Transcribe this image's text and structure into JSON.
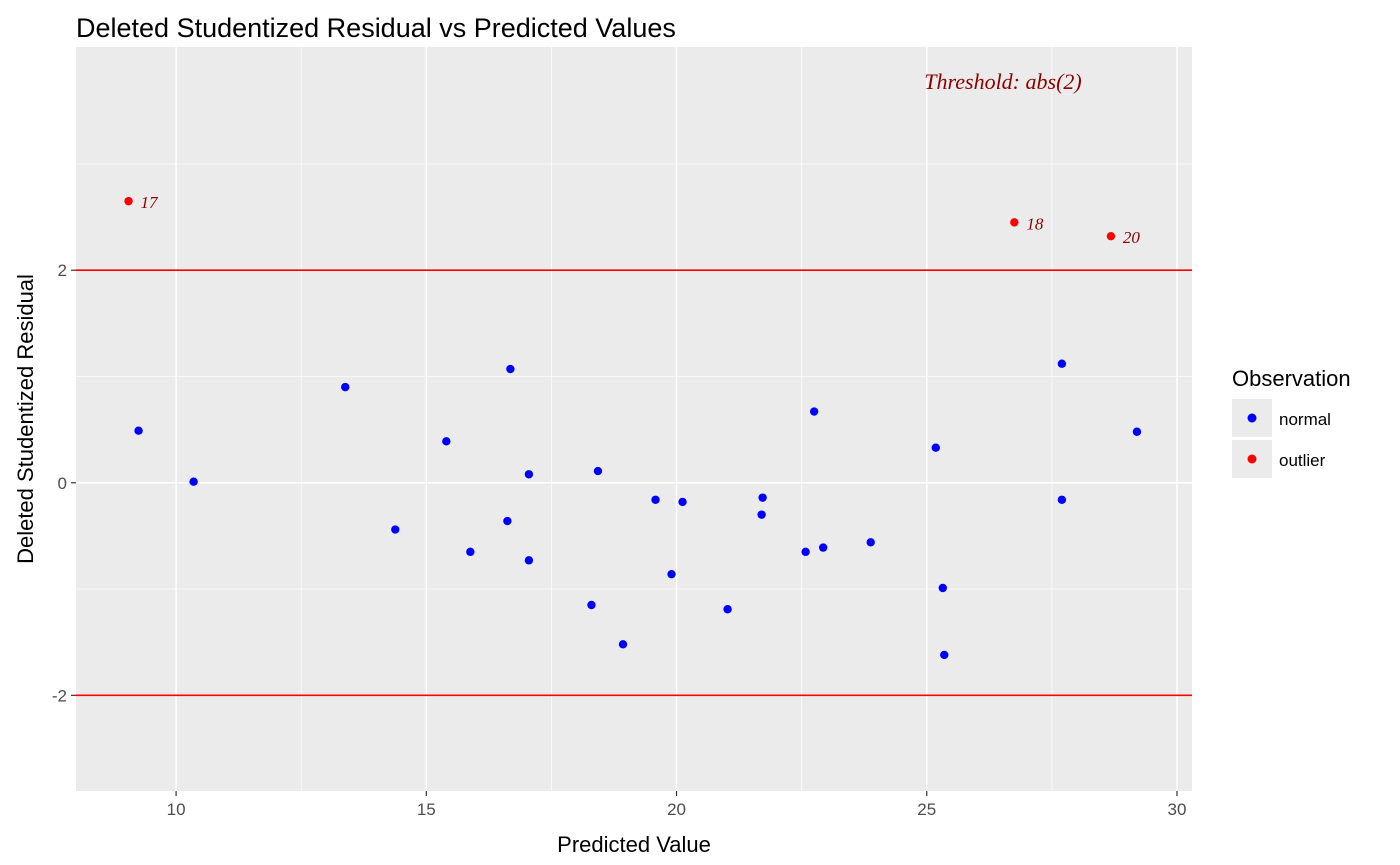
{
  "chart_data": {
    "type": "scatter",
    "title": "Deleted Studentized Residual vs Predicted Values",
    "xlabel": "Predicted Value",
    "ylabel": "Deleted Studentized Residual",
    "xlim": [
      8.0,
      30.3
    ],
    "ylim": [
      -2.9,
      4.1
    ],
    "x_ticks": [
      10,
      15,
      20,
      25,
      30
    ],
    "x_tick_labels": [
      "10",
      "15",
      "20",
      "25",
      "30"
    ],
    "y_ticks": [
      -2,
      0,
      2
    ],
    "y_tick_labels": [
      "-2",
      "0",
      "2"
    ],
    "grid": true,
    "threshold": 2,
    "threshold_lines": [
      2,
      -2
    ],
    "threshold_label": "Threshold: abs(2)",
    "legend": {
      "title": "Observation",
      "placement": "right",
      "entries": [
        {
          "label": "normal",
          "color": "#0000ff"
        },
        {
          "label": "outlier",
          "color": "#ff0000"
        }
      ]
    },
    "series": [
      {
        "name": "normal",
        "color": "#0000ff",
        "points": [
          {
            "x": 9.25,
            "y": 0.49
          },
          {
            "x": 10.35,
            "y": 0.01
          },
          {
            "x": 13.38,
            "y": 0.9
          },
          {
            "x": 14.38,
            "y": -0.44
          },
          {
            "x": 15.4,
            "y": 0.39
          },
          {
            "x": 15.88,
            "y": -0.65
          },
          {
            "x": 16.62,
            "y": -0.36
          },
          {
            "x": 16.68,
            "y": 1.07
          },
          {
            "x": 17.05,
            "y": 0.08
          },
          {
            "x": 17.05,
            "y": -0.73
          },
          {
            "x": 18.3,
            "y": -1.15
          },
          {
            "x": 18.43,
            "y": 0.11
          },
          {
            "x": 18.93,
            "y": -1.52
          },
          {
            "x": 19.58,
            "y": -0.16
          },
          {
            "x": 19.9,
            "y": -0.86
          },
          {
            "x": 20.12,
            "y": -0.18
          },
          {
            "x": 21.02,
            "y": -1.19
          },
          {
            "x": 21.7,
            "y": -0.3
          },
          {
            "x": 21.72,
            "y": -0.14
          },
          {
            "x": 22.58,
            "y": -0.65
          },
          {
            "x": 22.75,
            "y": 0.67
          },
          {
            "x": 22.93,
            "y": -0.61
          },
          {
            "x": 23.88,
            "y": -0.56
          },
          {
            "x": 25.18,
            "y": 0.33
          },
          {
            "x": 25.32,
            "y": -0.99
          },
          {
            "x": 25.35,
            "y": -1.62
          },
          {
            "x": 27.7,
            "y": 1.12
          },
          {
            "x": 27.7,
            "y": -0.16
          },
          {
            "x": 29.2,
            "y": 0.48
          }
        ]
      },
      {
        "name": "outlier",
        "color": "#ff0000",
        "points": [
          {
            "x": 9.05,
            "y": 2.65,
            "label": "17"
          },
          {
            "x": 26.75,
            "y": 2.45,
            "label": "18"
          },
          {
            "x": 28.68,
            "y": 2.32,
            "label": "20"
          }
        ]
      }
    ]
  },
  "colors": {
    "panel_background": "#ebebeb",
    "grid": "#ffffff",
    "threshold_line": "#ff0000",
    "annotation": "#8b0000",
    "normal": "#0000ff",
    "outlier": "#ff0000"
  }
}
